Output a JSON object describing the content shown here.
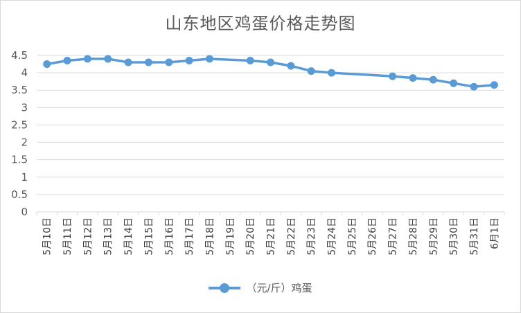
{
  "chart_data": {
    "type": "line",
    "title": "山东地区鸡蛋价格走势图",
    "xlabel": "",
    "ylabel": "",
    "ylim": [
      0,
      4.5
    ],
    "yticks": [
      "0",
      "0.5",
      "1",
      "1.5",
      "2",
      "2.5",
      "3",
      "3.5",
      "4",
      "4.5"
    ],
    "grid": true,
    "legend_position": "bottom",
    "color": "#5b9bd5",
    "categories": [
      "5月10日",
      "5月11日",
      "5月12日",
      "5月13日",
      "5月14日",
      "5月15日",
      "5月16日",
      "5月17日",
      "5月18日",
      "5月19日",
      "5月20日",
      "5月21日",
      "5月22日",
      "5月23日",
      "5月24日",
      "5月25日",
      "5月26日",
      "5月27日",
      "5月28日",
      "5月29日",
      "5月30日",
      "5月31日",
      "6月1日"
    ],
    "series": [
      {
        "name": "（元/斤）鸡蛋",
        "values": [
          4.25,
          4.35,
          4.4,
          4.4,
          4.3,
          4.3,
          4.3,
          4.35,
          4.4,
          null,
          4.35,
          4.3,
          4.2,
          4.05,
          4.0,
          null,
          null,
          3.9,
          3.85,
          3.8,
          3.7,
          3.6,
          3.65
        ]
      }
    ]
  }
}
